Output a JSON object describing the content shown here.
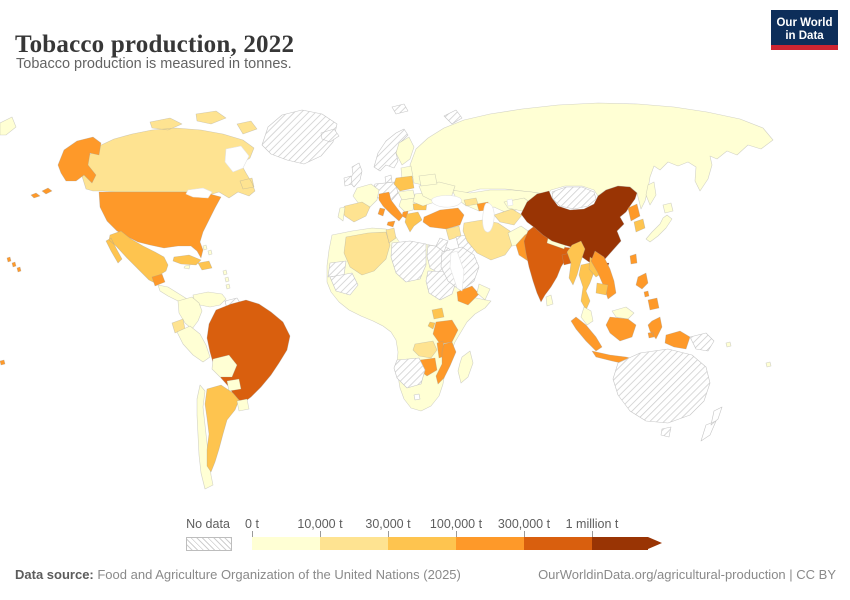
{
  "header": {
    "title": "Tobacco production, 2022",
    "subtitle": "Tobacco production is measured in tonnes."
  },
  "logo": {
    "line1": "Our World",
    "line2": "in Data",
    "bg": "#0d2e5a",
    "accent": "#cd2532"
  },
  "legend": {
    "no_data_label": "No data",
    "tick_labels": [
      "0 t",
      "10,000 t",
      "30,000 t",
      "100,000 t",
      "300,000 t",
      "1 million t"
    ],
    "colors": [
      "#ffffd4",
      "#fee391",
      "#fec44f",
      "#fe9929",
      "#d95f0e",
      "#993404"
    ]
  },
  "footer": {
    "source_label": "Data source:",
    "source_text": " Food and Agriculture Organization of the United Nations (2025)",
    "right_text": "OurWorldinData.org/agricultural-production | CC BY"
  },
  "map": {
    "country_stroke": "#9b9b9b",
    "no_data_stroke": "#c6c6c6",
    "regions": [
      {
        "id": "russia",
        "name": "Russia",
        "band": "b0"
      },
      {
        "id": "chukotka_wrap",
        "name": "Russia (far east)",
        "band": "b0"
      },
      {
        "id": "kazakhstan",
        "name": "Kazakhstan",
        "band": "b0"
      },
      {
        "id": "africa_base",
        "name": "Africa (other countries)",
        "band": "b0"
      },
      {
        "id": "canada",
        "name": "Canada",
        "band": "b1"
      },
      {
        "id": "greenland",
        "name": "Greenland",
        "band": "no_data"
      },
      {
        "id": "alaska",
        "name": "United States (Alaska)",
        "band": "b3"
      },
      {
        "id": "usa",
        "name": "United States",
        "band": "b3"
      },
      {
        "id": "hawaii",
        "name": "United States (Hawaii)",
        "band": "b3"
      },
      {
        "id": "pacific_dot",
        "name": "French Polynesia",
        "band": "b3"
      },
      {
        "id": "mexico",
        "name": "Mexico",
        "band": "b2"
      },
      {
        "id": "guatemala",
        "name": "Guatemala",
        "band": "b3"
      },
      {
        "id": "centam",
        "name": "Central America",
        "band": "b0"
      },
      {
        "id": "cuba",
        "name": "Cuba",
        "band": "b2"
      },
      {
        "id": "hispaniola",
        "name": "Dominican Republic",
        "band": "b2"
      },
      {
        "id": "jamaica",
        "name": "Jamaica",
        "band": "b0"
      },
      {
        "id": "bahamas",
        "name": "Bahamas",
        "band": "b0"
      },
      {
        "id": "antilles",
        "name": "Lesser Antilles",
        "band": "b0"
      },
      {
        "id": "venezuela",
        "name": "Venezuela",
        "band": "b0"
      },
      {
        "id": "colombia",
        "name": "Colombia",
        "band": "b0"
      },
      {
        "id": "guyanas",
        "name": "Guyana / Suriname",
        "band": "no_data"
      },
      {
        "id": "ecuador",
        "name": "Ecuador",
        "band": "b1"
      },
      {
        "id": "peru",
        "name": "Peru",
        "band": "b0"
      },
      {
        "id": "brazil",
        "name": "Brazil",
        "band": "b4"
      },
      {
        "id": "bolivia",
        "name": "Bolivia",
        "band": "b0"
      },
      {
        "id": "paraguay",
        "name": "Paraguay",
        "band": "b0"
      },
      {
        "id": "chile",
        "name": "Chile",
        "band": "b0"
      },
      {
        "id": "argentina",
        "name": "Argentina",
        "band": "b2"
      },
      {
        "id": "uruguay",
        "name": "Uruguay",
        "band": "b0"
      },
      {
        "id": "iceland",
        "name": "Iceland",
        "band": "no_data"
      },
      {
        "id": "scandinavia",
        "name": "Norway / Sweden",
        "band": "no_data"
      },
      {
        "id": "finland",
        "name": "Finland",
        "band": "b0"
      },
      {
        "id": "baltics",
        "name": "Baltic states",
        "band": "b0"
      },
      {
        "id": "uk",
        "name": "United Kingdom",
        "band": "no_data"
      },
      {
        "id": "ireland",
        "name": "Ireland",
        "band": "no_data"
      },
      {
        "id": "denmark",
        "name": "Denmark",
        "band": "no_data"
      },
      {
        "id": "germany_alps",
        "name": "Germany / Alpine states",
        "band": "no_data"
      },
      {
        "id": "france",
        "name": "France",
        "band": "b0"
      },
      {
        "id": "spain",
        "name": "Spain",
        "band": "b1"
      },
      {
        "id": "portugal",
        "name": "Portugal",
        "band": "b0"
      },
      {
        "id": "italy",
        "name": "Italy",
        "band": "b3"
      },
      {
        "id": "poland",
        "name": "Poland",
        "band": "b2"
      },
      {
        "id": "czech_hu",
        "name": "Czechia / Slovakia / Hungary",
        "band": "b0"
      },
      {
        "id": "balkans",
        "name": "Western Balkans",
        "band": "b0"
      },
      {
        "id": "albania",
        "name": "Albania",
        "band": "b3"
      },
      {
        "id": "greece",
        "name": "Greece",
        "band": "b2"
      },
      {
        "id": "bulgaria",
        "name": "Bulgaria",
        "band": "b2"
      },
      {
        "id": "romania",
        "name": "Romania",
        "band": "b0"
      },
      {
        "id": "ukraine",
        "name": "Ukraine",
        "band": "b0"
      },
      {
        "id": "belarus",
        "name": "Belarus",
        "band": "b0"
      },
      {
        "id": "novaya_zemlya",
        "name": "Novaya Zemlya",
        "band": "no_data"
      },
      {
        "id": "svalbard",
        "name": "Svalbard",
        "band": "no_data"
      },
      {
        "id": "w_sahara",
        "name": "Western Sahara",
        "band": "no_data"
      },
      {
        "id": "mauritania",
        "name": "Mauritania",
        "band": "no_data"
      },
      {
        "id": "algeria",
        "name": "Algeria",
        "band": "b1"
      },
      {
        "id": "tunisia",
        "name": "Tunisia",
        "band": "b1"
      },
      {
        "id": "libya",
        "name": "Libya",
        "band": "no_data"
      },
      {
        "id": "egypt",
        "name": "Egypt",
        "band": "no_data"
      },
      {
        "id": "sudan",
        "name": "Sudan",
        "band": "no_data"
      },
      {
        "id": "uganda",
        "name": "Uganda",
        "band": "b2"
      },
      {
        "id": "rwanda",
        "name": "Rwanda / Burundi",
        "band": "b2"
      },
      {
        "id": "tanzania",
        "name": "Tanzania",
        "band": "b3"
      },
      {
        "id": "malawi",
        "name": "Malawi",
        "band": "b3"
      },
      {
        "id": "zambia",
        "name": "Zambia",
        "band": "b1"
      },
      {
        "id": "mozambique",
        "name": "Mozambique",
        "band": "b3"
      },
      {
        "id": "zimbabwe",
        "name": "Zimbabwe",
        "band": "b3"
      },
      {
        "id": "nam_bots",
        "name": "Namibia / Botswana",
        "band": "no_data"
      },
      {
        "id": "lesotho",
        "name": "Lesotho",
        "band": "white"
      },
      {
        "id": "turkey",
        "name": "Turkey",
        "band": "b3"
      },
      {
        "id": "syria",
        "name": "Syria",
        "band": "b1"
      },
      {
        "id": "iraq",
        "name": "Iraq",
        "band": "no_data"
      },
      {
        "id": "jordan_isr",
        "name": "Jordan / Israel",
        "band": "no_data"
      },
      {
        "id": "iran",
        "name": "Iran",
        "band": "b1"
      },
      {
        "id": "saudi",
        "name": "Saudi Arabia",
        "band": "no_data"
      },
      {
        "id": "yemen",
        "name": "Yemen",
        "band": "b3"
      },
      {
        "id": "oman",
        "name": "Oman",
        "band": "b0"
      },
      {
        "id": "georgia",
        "name": "Georgia / Armenia",
        "band": "b1"
      },
      {
        "id": "azerbaijan",
        "name": "Azerbaijan",
        "band": "b3"
      },
      {
        "id": "turkmen",
        "name": "Turkmenistan",
        "band": "b1"
      },
      {
        "id": "uzbek",
        "name": "Uzbekistan",
        "band": "b0"
      },
      {
        "id": "kyrgyz",
        "name": "Kyrgyzstan",
        "band": "b3"
      },
      {
        "id": "tajik",
        "name": "Tajikistan",
        "band": "b2"
      },
      {
        "id": "afghanistan",
        "name": "Afghanistan",
        "band": "b0"
      },
      {
        "id": "pakistan",
        "name": "Pakistan",
        "band": "b3"
      },
      {
        "id": "india",
        "name": "India",
        "band": "b4"
      },
      {
        "id": "nepal",
        "name": "Nepal",
        "band": "b0"
      },
      {
        "id": "bangladesh",
        "name": "Bangladesh",
        "band": "b4"
      },
      {
        "id": "sri_lanka",
        "name": "Sri Lanka",
        "band": "b0"
      },
      {
        "id": "china",
        "name": "China",
        "band": "b5"
      },
      {
        "id": "hainan",
        "name": "China (Hainan)",
        "band": "b5"
      },
      {
        "id": "mongolia",
        "name": "Mongolia",
        "band": "no_data"
      },
      {
        "id": "n_korea",
        "name": "North Korea",
        "band": "b3"
      },
      {
        "id": "s_korea",
        "name": "South Korea",
        "band": "b2"
      },
      {
        "id": "japan",
        "name": "Japan",
        "band": "b0"
      },
      {
        "id": "sakhalin",
        "name": "Sakhalin",
        "band": "b0"
      },
      {
        "id": "taiwan",
        "name": "Taiwan",
        "band": "b3"
      },
      {
        "id": "myanmar",
        "name": "Myanmar",
        "band": "b2"
      },
      {
        "id": "thailand",
        "name": "Thailand",
        "band": "b2"
      },
      {
        "id": "laos",
        "name": "Laos",
        "band": "b2"
      },
      {
        "id": "vietnam",
        "name": "Vietnam",
        "band": "b3"
      },
      {
        "id": "cambodia",
        "name": "Cambodia",
        "band": "b2"
      },
      {
        "id": "malaysia",
        "name": "Malaysia",
        "band": "b0"
      },
      {
        "id": "indonesia",
        "name": "Indonesia",
        "band": "b3"
      },
      {
        "id": "philippines",
        "name": "Philippines",
        "band": "b3"
      },
      {
        "id": "png",
        "name": "Papua New Guinea",
        "band": "no_data"
      },
      {
        "id": "australia",
        "name": "Australia",
        "band": "no_data"
      },
      {
        "id": "nz",
        "name": "New Zealand",
        "band": "white"
      },
      {
        "id": "pacific_is",
        "name": "Pacific islands",
        "band": "b0"
      },
      {
        "id": "hudson_bay",
        "name": "Hudson Bay",
        "band": "water"
      },
      {
        "id": "great_lakes",
        "name": "Great Lakes",
        "band": "water"
      },
      {
        "id": "black_sea",
        "name": "Black Sea",
        "band": "water"
      },
      {
        "id": "caspian",
        "name": "Caspian Sea",
        "band": "water"
      },
      {
        "id": "aral",
        "name": "Aral Sea",
        "band": "water"
      },
      {
        "id": "red_sea",
        "name": "Red Sea",
        "band": "water"
      }
    ]
  },
  "chart_data": {
    "type": "choropleth",
    "title": "Tobacco production, 2022",
    "subtitle": "Tobacco production is measured in tonnes.",
    "unit": "tonnes",
    "legend_position": "bottom",
    "bins": [
      {
        "range": "0 t – 10,000 t",
        "color": "#ffffd4"
      },
      {
        "range": "10,000 t – 30,000 t",
        "color": "#fee391"
      },
      {
        "range": "30,000 t – 100,000 t",
        "color": "#fec44f"
      },
      {
        "range": "100,000 t – 300,000 t",
        "color": "#fe9929"
      },
      {
        "range": "300,000 t – 1 million t",
        "color": "#d95f0e"
      },
      {
        "range": "over 1 million t",
        "color": "#993404"
      },
      {
        "range": "No data",
        "color": "hatched"
      }
    ],
    "countries_by_bin": {
      "over 1 million t": [
        "China"
      ],
      "300,000 t – 1 million t": [
        "India",
        "Brazil",
        "Bangladesh"
      ],
      "100,000 t – 300,000 t": [
        "United States",
        "Indonesia",
        "Pakistan",
        "Turkey",
        "Italy",
        "Zimbabwe",
        "Mozambique",
        "Malawi",
        "Tanzania",
        "North Korea",
        "Vietnam",
        "Philippines",
        "Yemen",
        "Guatemala",
        "Azerbaijan",
        "Kyrgyzstan",
        "Albania",
        "Taiwan"
      ],
      "30,000 t – 100,000 t": [
        "Mexico",
        "Cuba",
        "Dominican Republic",
        "Argentina",
        "Poland",
        "Greece",
        "Bulgaria",
        "Myanmar",
        "Thailand",
        "Laos",
        "Cambodia",
        "South Korea",
        "Uganda"
      ],
      "10,000 t – 30,000 t": [
        "Canada",
        "Spain",
        "Algeria",
        "Tunisia",
        "Ecuador",
        "Iran",
        "Syria",
        "Turkmenistan",
        "Georgia",
        "Zambia"
      ],
      "0 t – 10,000 t": [
        "Russia",
        "Kazakhstan",
        "France",
        "Ukraine",
        "Romania",
        "Finland",
        "Japan",
        "Malaysia",
        "Colombia",
        "Venezuela",
        "Peru",
        "Bolivia",
        "Paraguay",
        "Chile",
        "Uruguay",
        "Nepal",
        "Sri Lanka",
        "Afghanistan",
        "Oman",
        "South Africa",
        "Madagascar",
        "most of West & Central Africa"
      ],
      "No data": [
        "Greenland",
        "United Kingdom",
        "Ireland",
        "Norway",
        "Sweden",
        "Germany",
        "Iceland",
        "Mongolia",
        "Saudi Arabia",
        "Iraq",
        "Libya",
        "Egypt",
        "Sudan",
        "Mauritania",
        "Namibia",
        "Botswana",
        "Guyana",
        "Suriname",
        "Australia",
        "Papua New Guinea"
      ]
    }
  }
}
